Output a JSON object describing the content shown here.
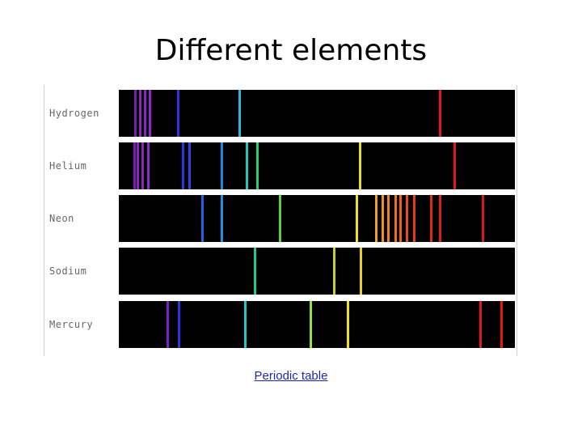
{
  "title": "Different elements",
  "link_text": "Periodic table",
  "spectra": [
    {
      "label": "Hydrogen",
      "lines": [
        {
          "nm": 398,
          "color": "#7a1fb0"
        },
        {
          "nm": 402,
          "color": "#8a25c0"
        },
        {
          "nm": 406,
          "color": "#8a25c0"
        },
        {
          "nm": 410,
          "color": "#8e2ad0"
        },
        {
          "nm": 434,
          "color": "#2b36e0"
        },
        {
          "nm": 486,
          "color": "#2ab8d8"
        },
        {
          "nm": 656,
          "color": "#e01818"
        }
      ]
    },
    {
      "label": "Helium",
      "lines": [
        {
          "nm": 397,
          "color": "#7a1fb0"
        },
        {
          "nm": 400,
          "color": "#8a25c0"
        },
        {
          "nm": 404,
          "color": "#8a25c0"
        },
        {
          "nm": 409,
          "color": "#8e2ad0"
        },
        {
          "nm": 438,
          "color": "#2b36e0"
        },
        {
          "nm": 444,
          "color": "#2b40e8"
        },
        {
          "nm": 471,
          "color": "#1e88e8"
        },
        {
          "nm": 492,
          "color": "#22c8b8"
        },
        {
          "nm": 501,
          "color": "#26d070"
        },
        {
          "nm": 588,
          "color": "#e8e020"
        },
        {
          "nm": 668,
          "color": "#e01818"
        }
      ]
    },
    {
      "label": "Neon",
      "lines": [
        {
          "nm": 455,
          "color": "#2060e8"
        },
        {
          "nm": 471,
          "color": "#1e90e8"
        },
        {
          "nm": 520,
          "color": "#60d040"
        },
        {
          "nm": 585,
          "color": "#f0e020"
        },
        {
          "nm": 602,
          "color": "#f0a020"
        },
        {
          "nm": 607,
          "color": "#f09020"
        },
        {
          "nm": 612,
          "color": "#f08020"
        },
        {
          "nm": 618,
          "color": "#f07020"
        },
        {
          "nm": 622,
          "color": "#f06018"
        },
        {
          "nm": 628,
          "color": "#f04a18"
        },
        {
          "nm": 634,
          "color": "#e83a18"
        },
        {
          "nm": 648,
          "color": "#e02a18"
        },
        {
          "nm": 656,
          "color": "#e02018"
        },
        {
          "nm": 692,
          "color": "#d81818"
        }
      ]
    },
    {
      "label": "Sodium",
      "lines": [
        {
          "nm": 499,
          "color": "#22c890"
        },
        {
          "nm": 566,
          "color": "#c8d030"
        },
        {
          "nm": 589,
          "color": "#e8d020"
        }
      ]
    },
    {
      "label": "Mercury",
      "lines": [
        {
          "nm": 425,
          "color": "#7a20d0"
        },
        {
          "nm": 435,
          "color": "#2b36e0"
        },
        {
          "nm": 491,
          "color": "#22c8c8"
        },
        {
          "nm": 546,
          "color": "#90e040"
        },
        {
          "nm": 578,
          "color": "#f0e020"
        },
        {
          "nm": 690,
          "color": "#e01818"
        },
        {
          "nm": 708,
          "color": "#e01818"
        }
      ]
    }
  ]
}
